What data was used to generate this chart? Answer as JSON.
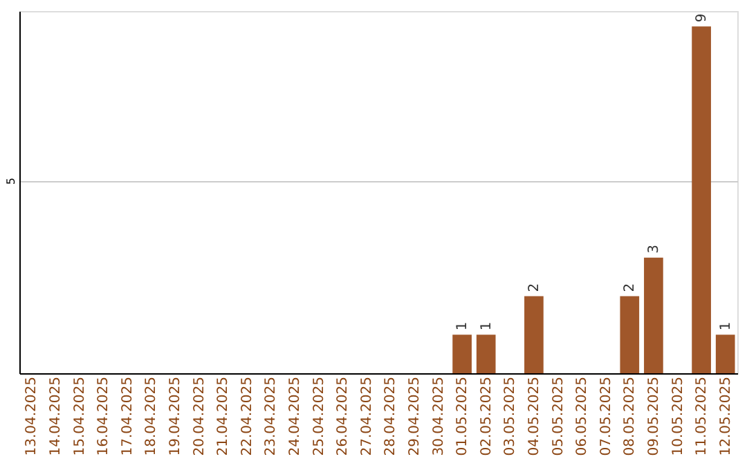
{
  "chart_data": {
    "type": "bar",
    "categories": [
      "13.04.2025",
      "14.04.2025",
      "15.04.2025",
      "16.04.2025",
      "17.04.2025",
      "18.04.2025",
      "19.04.2025",
      "20.04.2025",
      "21.04.2025",
      "22.04.2025",
      "23.04.2025",
      "24.04.2025",
      "25.04.2025",
      "26.04.2025",
      "27.04.2025",
      "28.04.2025",
      "29.04.2025",
      "30.04.2025",
      "01.05.2025",
      "02.05.2025",
      "03.05.2025",
      "04.05.2025",
      "05.05.2025",
      "06.05.2025",
      "07.05.2025",
      "08.05.2025",
      "09.05.2025",
      "10.05.2025",
      "11.05.2025",
      "12.05.2025"
    ],
    "values": [
      null,
      null,
      null,
      null,
      null,
      null,
      null,
      null,
      null,
      null,
      null,
      null,
      null,
      null,
      null,
      null,
      null,
      null,
      1,
      1,
      null,
      2,
      null,
      null,
      null,
      2,
      3,
      null,
      9,
      1
    ],
    "data_labels": true,
    "color": "#a0572a",
    "ylim": [
      0,
      9.4
    ],
    "yticks": [
      5
    ],
    "grid": "y",
    "legend": false
  }
}
